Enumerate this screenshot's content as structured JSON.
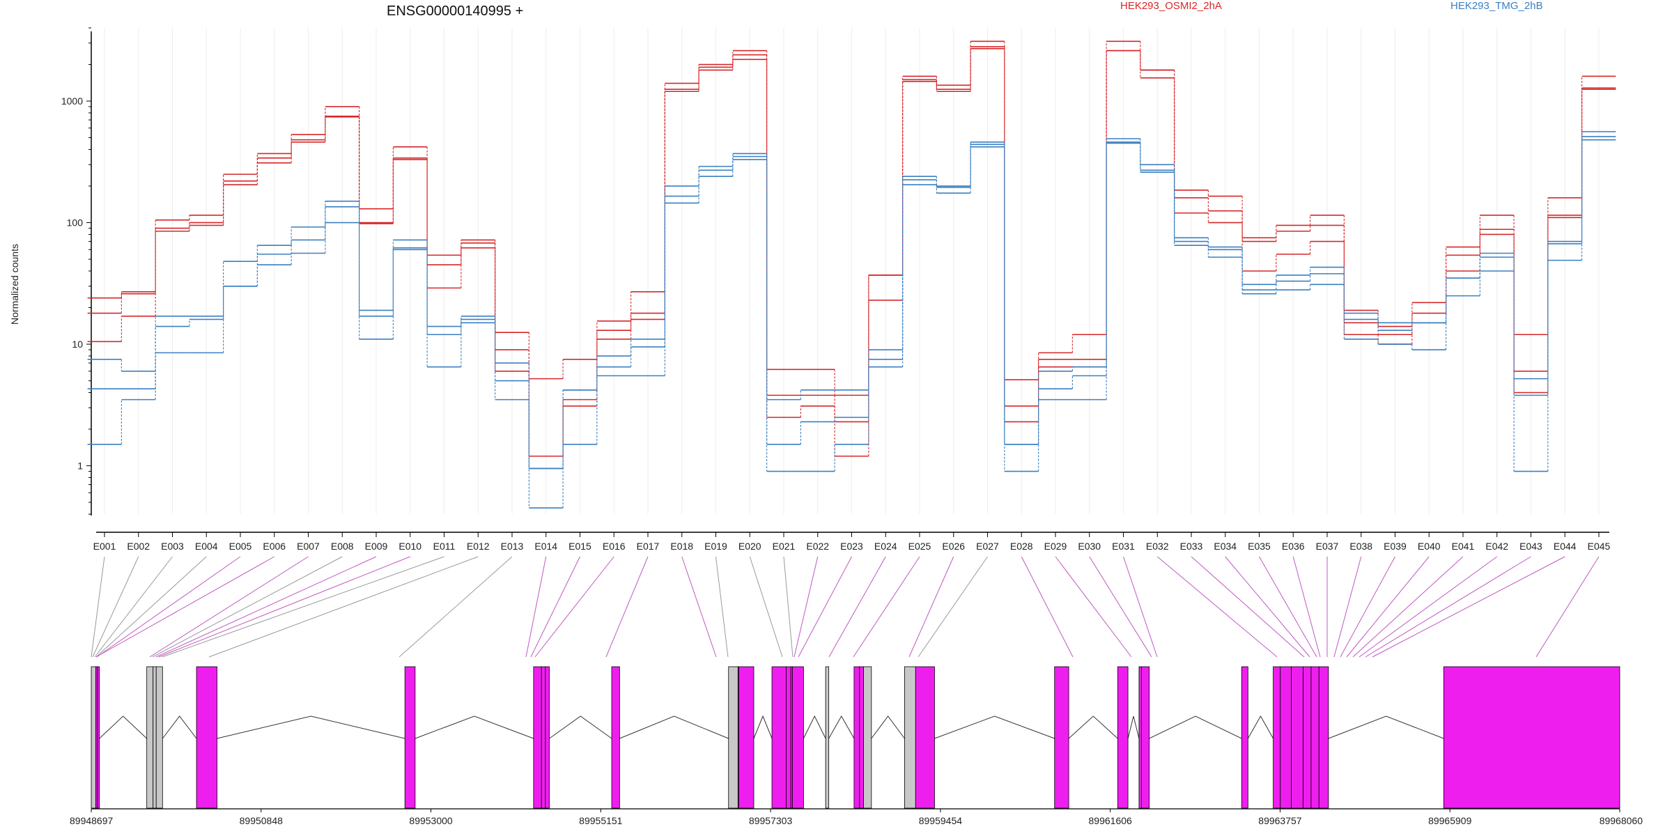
{
  "title": "ENSG00000140995 +",
  "ylabel": "Normalized counts",
  "legend": [
    {
      "label": "HEK293_OSMI2_2hA",
      "color": "#d62728"
    },
    {
      "label": "HEK293_TMG_2hB",
      "color": "#3a7fc1"
    }
  ],
  "colors": {
    "exon_highlight": "#ee1fee",
    "exon_other": "#c8c8c8",
    "connector_gray": "#999999",
    "connector_pink": "#c058c0",
    "axis": "#000000"
  },
  "chart_data": {
    "type": "line",
    "yscale": "log",
    "ylim": [
      0.4,
      4000
    ],
    "yticks": [
      1,
      10,
      100,
      1000
    ],
    "exons": [
      "E001",
      "E002",
      "E003",
      "E004",
      "E005",
      "E006",
      "E007",
      "E008",
      "E009",
      "E010",
      "E011",
      "E012",
      "E013",
      "E014",
      "E015",
      "E016",
      "E017",
      "E018",
      "E019",
      "E020",
      "E021",
      "E022",
      "E023",
      "E024",
      "E025",
      "E026",
      "E027",
      "E028",
      "E029",
      "E030",
      "E031",
      "E032",
      "E033",
      "E034",
      "E035",
      "E036",
      "E037",
      "E038",
      "E039",
      "E040",
      "E041",
      "E042",
      "E043",
      "E044",
      "E045"
    ],
    "series": [
      {
        "name": "HEK293_OSMI2_2hA",
        "color": "#d62728",
        "values": [
          24,
          27,
          105,
          115,
          250,
          370,
          530,
          900,
          130,
          420,
          54,
          72,
          12.5,
          5.2,
          7.5,
          15.5,
          27,
          1400,
          2000,
          2600,
          6.2,
          6.2,
          3.8,
          37,
          1600,
          1350,
          3100,
          5.1,
          8.5,
          12,
          3100,
          1800,
          185,
          165,
          75,
          95,
          115,
          19,
          14,
          22,
          63,
          115,
          12,
          160,
          1600
        ]
      },
      {
        "name": "HEK293_OSMI2_2hA",
        "color": "#d62728",
        "values": [
          18,
          26,
          90,
          100,
          220,
          340,
          480,
          750,
          100,
          340,
          45,
          68,
          9,
          1.2,
          3.5,
          13,
          18,
          1250,
          1900,
          2400,
          3.8,
          3.8,
          2.3,
          37,
          1500,
          1250,
          2800,
          3.1,
          7.5,
          7.5,
          2600,
          1800,
          160,
          125,
          70,
          85,
          95,
          15,
          12,
          18,
          54,
          88,
          6,
          115,
          1280
        ]
      },
      {
        "name": "HEK293_OSMI2_2hA",
        "color": "#d62728",
        "values": [
          10.5,
          17,
          85,
          95,
          205,
          310,
          460,
          740,
          98,
          330,
          29,
          62,
          6,
          1.2,
          3.1,
          11,
          16,
          1200,
          1800,
          2200,
          2.5,
          3.1,
          1.2,
          23,
          1450,
          1200,
          2700,
          2.3,
          6.5,
          6.5,
          2600,
          1550,
          120,
          100,
          40,
          55,
          70,
          12,
          10,
          15,
          40,
          80,
          4,
          110,
          1250
        ]
      },
      {
        "name": "HEK293_TMG_2hB",
        "color": "#3a7fc1",
        "values": [
          7.5,
          6,
          17,
          17,
          48,
          65,
          92,
          150,
          19,
          72,
          14,
          17,
          7,
          0.95,
          4.2,
          8,
          11,
          200,
          290,
          370,
          3.5,
          4.2,
          4.2,
          9,
          240,
          200,
          460,
          1.5,
          6,
          6.5,
          490,
          300,
          75,
          63,
          31,
          37,
          43,
          18,
          15,
          15,
          35,
          56,
          5.2,
          70,
          560
        ]
      },
      {
        "name": "HEK293_TMG_2hB",
        "color": "#3a7fc1",
        "values": [
          4.3,
          4.3,
          14,
          16,
          30,
          55,
          72,
          135,
          17,
          62,
          12,
          16,
          5,
          0.95,
          4.2,
          6.5,
          9.5,
          165,
          270,
          350,
          1.5,
          2.3,
          2.5,
          7.5,
          225,
          195,
          440,
          1.5,
          4.3,
          5.5,
          460,
          270,
          70,
          60,
          28,
          33,
          38,
          16,
          13,
          15,
          35,
          52,
          3.8,
          67,
          510
        ]
      },
      {
        "name": "HEK293_TMG_2hB",
        "color": "#3a7fc1",
        "values": [
          1.5,
          3.5,
          8.5,
          8.5,
          30,
          45,
          56,
          100,
          11,
          60,
          6.5,
          15,
          3.5,
          0.45,
          1.5,
          5.5,
          5.5,
          145,
          240,
          330,
          0.9,
          0.9,
          1.5,
          6.5,
          205,
          175,
          420,
          0.9,
          3.5,
          3.5,
          450,
          260,
          65,
          52,
          26,
          28,
          31,
          11,
          10,
          9,
          25,
          40,
          0.9,
          49,
          480
        ]
      }
    ]
  },
  "gene_model": {
    "coord_labels": [
      "89948697",
      "89950848",
      "89953000",
      "89955151",
      "89957303",
      "89959454",
      "89961606",
      "89963757",
      "89965909",
      "89968060"
    ]
  }
}
